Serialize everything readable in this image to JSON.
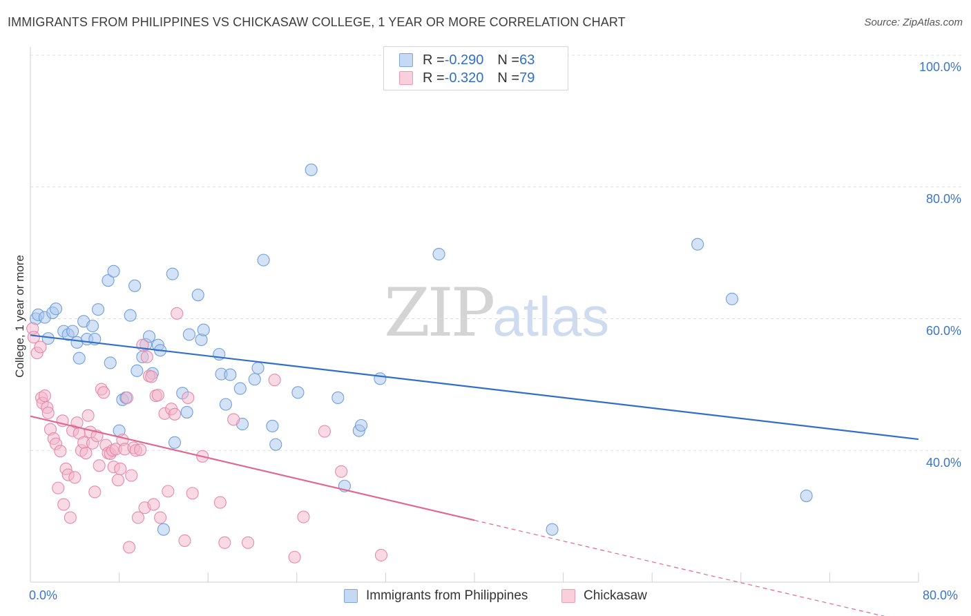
{
  "header": {
    "title": "IMMIGRANTS FROM PHILIPPINES VS CHICKASAW COLLEGE, 1 YEAR OR MORE CORRELATION CHART",
    "source": "Source: ZipAtlas.com"
  },
  "watermark": {
    "zip": "ZIP",
    "atlas": "atlas"
  },
  "legend": {
    "rows": [
      {
        "r_label": "R = ",
        "r_value": "-0.290",
        "n_label": "N = ",
        "n_value": "63",
        "color": "#a9c6ef"
      },
      {
        "r_label": "R = ",
        "r_value": "-0.320",
        "n_label": "N = ",
        "n_value": "79",
        "color": "#f4b6c9"
      }
    ]
  },
  "chart_data": {
    "type": "scatter",
    "title": "IMMIGRANTS FROM PHILIPPINES VS CHICKASAW COLLEGE, 1 YEAR OR MORE CORRELATION CHART",
    "xlabel": "",
    "ylabel": "College, 1 year or more",
    "xlim": [
      0,
      80
    ],
    "ylim": [
      20,
      100
    ],
    "x_tick_labels": [
      "0.0%",
      "80.0%"
    ],
    "y_tick_labels": [
      "100.0%",
      "80.0%",
      "60.0%",
      "40.0%"
    ],
    "y_ticks": [
      100,
      80,
      60,
      40
    ],
    "grid": true,
    "legend_position": "top-center",
    "series": [
      {
        "name": "Immigrants from Philippines",
        "color": "#a9c6ef",
        "stroke": "#6f9fdc",
        "trend": {
          "x0": 0,
          "y0": 57.5,
          "x1": 80,
          "y1": 41.7,
          "color": "#2f6fc9"
        },
        "points": [
          [
            0.5,
            60.0
          ],
          [
            0.7,
            60.6
          ],
          [
            1.3,
            60.2
          ],
          [
            1.6,
            57.0
          ],
          [
            2.0,
            60.9
          ],
          [
            2.3,
            61.5
          ],
          [
            3.0,
            58.1
          ],
          [
            3.4,
            57.6
          ],
          [
            3.8,
            58.1
          ],
          [
            4.2,
            56.4
          ],
          [
            4.4,
            54.0
          ],
          [
            4.8,
            59.6
          ],
          [
            5.1,
            56.9
          ],
          [
            5.6,
            58.9
          ],
          [
            5.8,
            56.9
          ],
          [
            6.1,
            61.4
          ],
          [
            7.0,
            65.8
          ],
          [
            7.2,
            53.3
          ],
          [
            7.5,
            67.2
          ],
          [
            8.0,
            43.0
          ],
          [
            8.3,
            47.7
          ],
          [
            8.6,
            48.0
          ],
          [
            9.0,
            60.5
          ],
          [
            9.4,
            65.0
          ],
          [
            9.6,
            52.1
          ],
          [
            10.1,
            54.2
          ],
          [
            10.4,
            56.1
          ],
          [
            10.7,
            57.3
          ],
          [
            11.0,
            51.7
          ],
          [
            11.5,
            56.0
          ],
          [
            11.7,
            55.2
          ],
          [
            12.0,
            28.0
          ],
          [
            12.8,
            66.8
          ],
          [
            13.0,
            41.2
          ],
          [
            13.7,
            48.7
          ],
          [
            14.1,
            45.8
          ],
          [
            14.3,
            57.6
          ],
          [
            15.1,
            63.6
          ],
          [
            15.4,
            56.8
          ],
          [
            15.6,
            58.3
          ],
          [
            17.0,
            54.6
          ],
          [
            17.2,
            51.6
          ],
          [
            17.6,
            47.0
          ],
          [
            18.0,
            51.5
          ],
          [
            18.9,
            49.4
          ],
          [
            19.1,
            44.0
          ],
          [
            20.2,
            50.8
          ],
          [
            20.5,
            52.5
          ],
          [
            21.0,
            68.9
          ],
          [
            21.8,
            43.7
          ],
          [
            22.1,
            40.9
          ],
          [
            24.1,
            48.8
          ],
          [
            25.3,
            82.6
          ],
          [
            27.7,
            48.0
          ],
          [
            28.3,
            34.6
          ],
          [
            29.6,
            43.0
          ],
          [
            29.8,
            43.8
          ],
          [
            31.5,
            50.9
          ],
          [
            36.8,
            69.8
          ],
          [
            47.0,
            28.0
          ],
          [
            60.1,
            71.3
          ],
          [
            63.2,
            63.0
          ],
          [
            69.9,
            33.1
          ]
        ]
      },
      {
        "name": "Chickasaw",
        "color": "#f4b6c9",
        "stroke": "#e58aa8",
        "trend": {
          "x0": 0,
          "y0": 45.2,
          "x1": 40,
          "y1": 29.4,
          "dash_x1": 80,
          "dash_y1": 13.6,
          "color": "#e0688f"
        },
        "points": [
          [
            0.2,
            58.5
          ],
          [
            0.3,
            57.2
          ],
          [
            0.6,
            54.8
          ],
          [
            0.9,
            55.7
          ],
          [
            1.0,
            48.0
          ],
          [
            1.1,
            47.2
          ],
          [
            1.3,
            48.3
          ],
          [
            1.5,
            46.5
          ],
          [
            1.6,
            45.7
          ],
          [
            1.8,
            43.2
          ],
          [
            2.1,
            41.8
          ],
          [
            2.3,
            41.0
          ],
          [
            2.5,
            34.3
          ],
          [
            2.7,
            39.9
          ],
          [
            2.9,
            44.5
          ],
          [
            3.0,
            31.8
          ],
          [
            3.2,
            37.2
          ],
          [
            3.4,
            36.3
          ],
          [
            3.6,
            29.8
          ],
          [
            3.8,
            43.0
          ],
          [
            4.0,
            35.9
          ],
          [
            4.2,
            44.2
          ],
          [
            4.4,
            42.6
          ],
          [
            4.6,
            40.0
          ],
          [
            4.8,
            41.2
          ],
          [
            5.0,
            39.6
          ],
          [
            5.2,
            45.3
          ],
          [
            5.4,
            42.8
          ],
          [
            5.6,
            41.1
          ],
          [
            5.8,
            33.7
          ],
          [
            6.0,
            42.2
          ],
          [
            6.2,
            37.7
          ],
          [
            6.4,
            49.3
          ],
          [
            6.6,
            48.8
          ],
          [
            6.8,
            40.8
          ],
          [
            7.0,
            39.6
          ],
          [
            7.2,
            39.5
          ],
          [
            7.4,
            40.0
          ],
          [
            7.5,
            37.5
          ],
          [
            7.7,
            40.2
          ],
          [
            7.9,
            35.5
          ],
          [
            8.1,
            37.2
          ],
          [
            8.3,
            41.6
          ],
          [
            8.5,
            40.2
          ],
          [
            8.7,
            48.0
          ],
          [
            8.9,
            25.3
          ],
          [
            9.1,
            36.2
          ],
          [
            9.3,
            40.4
          ],
          [
            9.5,
            40.0
          ],
          [
            9.7,
            29.8
          ],
          [
            9.9,
            40.1
          ],
          [
            10.1,
            56.0
          ],
          [
            10.3,
            31.3
          ],
          [
            10.5,
            54.2
          ],
          [
            10.7,
            51.3
          ],
          [
            10.9,
            51.2
          ],
          [
            11.1,
            31.8
          ],
          [
            11.3,
            48.3
          ],
          [
            11.5,
            48.4
          ],
          [
            11.7,
            29.8
          ],
          [
            12.1,
            45.6
          ],
          [
            12.4,
            33.8
          ],
          [
            12.7,
            46.3
          ],
          [
            13.0,
            45.5
          ],
          [
            13.2,
            60.8
          ],
          [
            13.9,
            26.3
          ],
          [
            14.2,
            48.0
          ],
          [
            14.6,
            33.5
          ],
          [
            15.5,
            39.1
          ],
          [
            17.1,
            32.1
          ],
          [
            17.5,
            26.0
          ],
          [
            18.3,
            44.7
          ],
          [
            19.6,
            26.0
          ],
          [
            22.0,
            50.7
          ],
          [
            23.8,
            23.8
          ],
          [
            24.6,
            29.9
          ],
          [
            26.5,
            42.9
          ],
          [
            28.0,
            36.8
          ],
          [
            31.6,
            24.1
          ]
        ]
      }
    ]
  },
  "bottom_legend": {
    "items": [
      {
        "label": "Immigrants from Philippines",
        "color": "#a9c6ef"
      },
      {
        "label": "Chickasaw",
        "color": "#f4b6c9"
      }
    ]
  }
}
